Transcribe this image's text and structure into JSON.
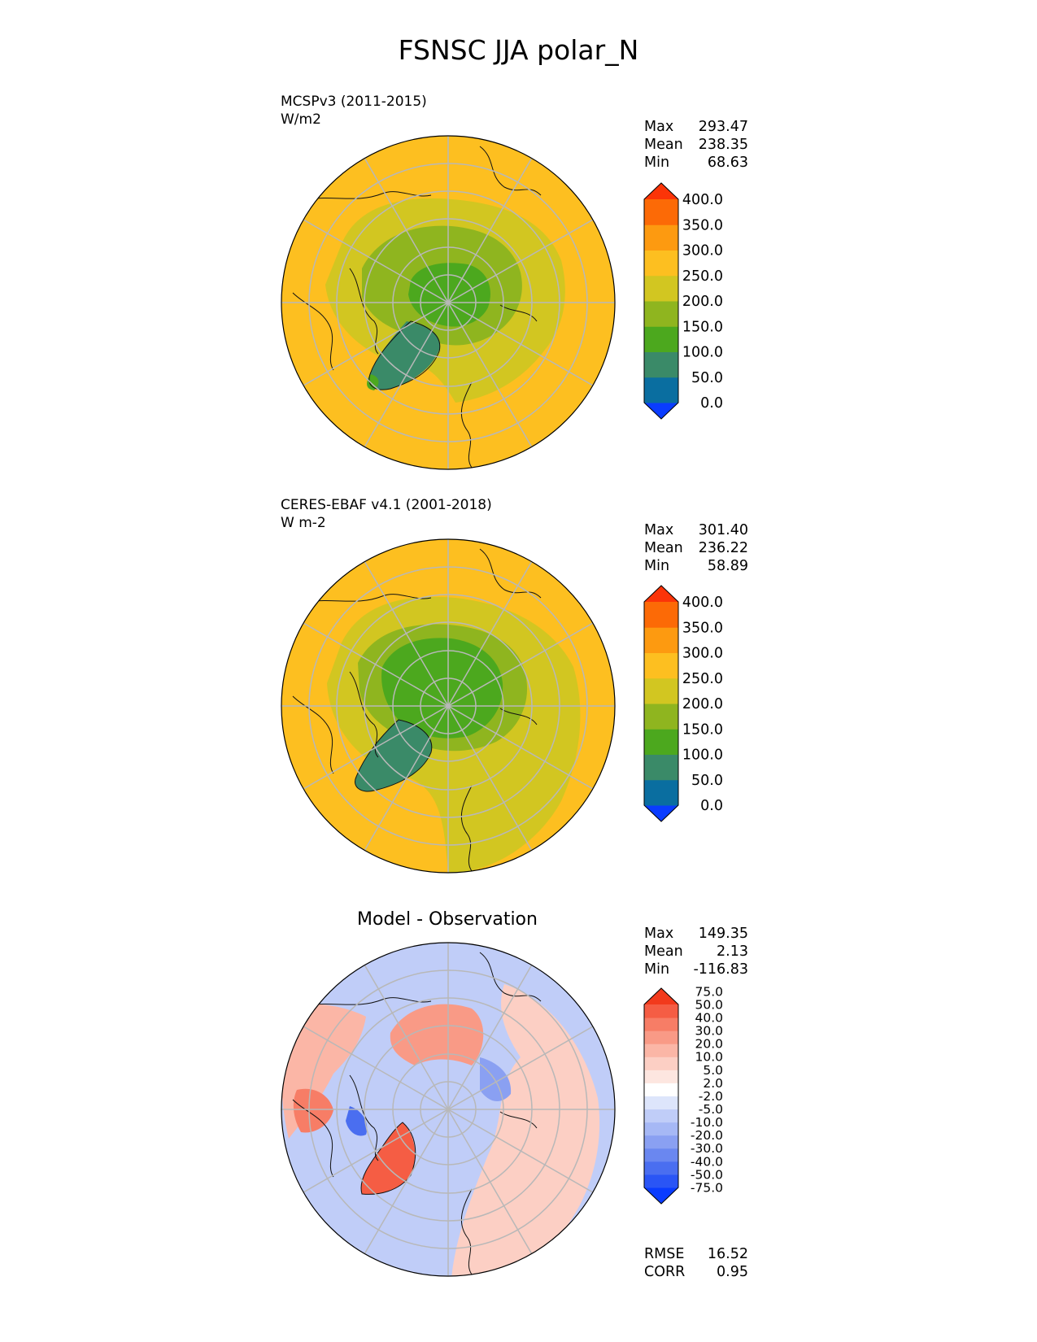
{
  "title": "FSNSC JJA polar_N",
  "panels": [
    {
      "label1": "MCSPv3 (2011-2015)",
      "label2": "W/m2",
      "stats": [
        {
          "label": "Max",
          "value": "293.47"
        },
        {
          "label": "Mean",
          "value": "238.35"
        },
        {
          "label": "Min",
          "value": "68.63"
        }
      ],
      "colorbar": {
        "colors": [
          "#0a3cff",
          "#0a6ea0",
          "#3a8a68",
          "#4ca81e",
          "#8fb51f",
          "#d2c621",
          "#fdbf20",
          "#fd9a10",
          "#fc6a06",
          "#fb3408"
        ],
        "ticks": [
          "0.0",
          "50.0",
          "100.0",
          "150.0",
          "200.0",
          "250.0",
          "300.0",
          "350.0",
          "400.0"
        ]
      }
    },
    {
      "label1": "CERES-EBAF v4.1 (2001-2018)",
      "label2": "W m-2",
      "stats": [
        {
          "label": "Max",
          "value": "301.40"
        },
        {
          "label": "Mean",
          "value": "236.22"
        },
        {
          "label": "Min",
          "value": "58.89"
        }
      ],
      "colorbar": {
        "colors": [
          "#0a3cff",
          "#0a6ea0",
          "#3a8a68",
          "#4ca81e",
          "#8fb51f",
          "#d2c621",
          "#fdbf20",
          "#fd9a10",
          "#fc6a06",
          "#fb3408"
        ],
        "ticks": [
          "0.0",
          "50.0",
          "100.0",
          "150.0",
          "200.0",
          "250.0",
          "300.0",
          "350.0",
          "400.0"
        ]
      }
    },
    {
      "title": "Model - Observation",
      "stats": [
        {
          "label": "Max",
          "value": "149.35"
        },
        {
          "label": "Mean",
          "value": "2.13"
        },
        {
          "label": "Min",
          "value": "-116.83"
        }
      ],
      "colorbar": {
        "colors": [
          "#0a3cff",
          "#2a55f5",
          "#4a6ef0",
          "#6a87f0",
          "#8aa0f2",
          "#a6b8f5",
          "#c0cdf8",
          "#dde5fb",
          "#ffffff",
          "#fde6e0",
          "#fccfc4",
          "#fbb6a6",
          "#f99a86",
          "#f77d66",
          "#f55d44",
          "#f23a1c"
        ],
        "ticks": [
          "-75.0",
          "-50.0",
          "-40.0",
          "-30.0",
          "-20.0",
          "-10.0",
          "-5.0",
          "-2.0",
          "2.0",
          "5.0",
          "10.0",
          "20.0",
          "30.0",
          "40.0",
          "50.0",
          "75.0"
        ]
      },
      "metrics": [
        {
          "label": "RMSE",
          "value": "16.52"
        },
        {
          "label": "CORR",
          "value": "0.95"
        }
      ]
    }
  ]
}
